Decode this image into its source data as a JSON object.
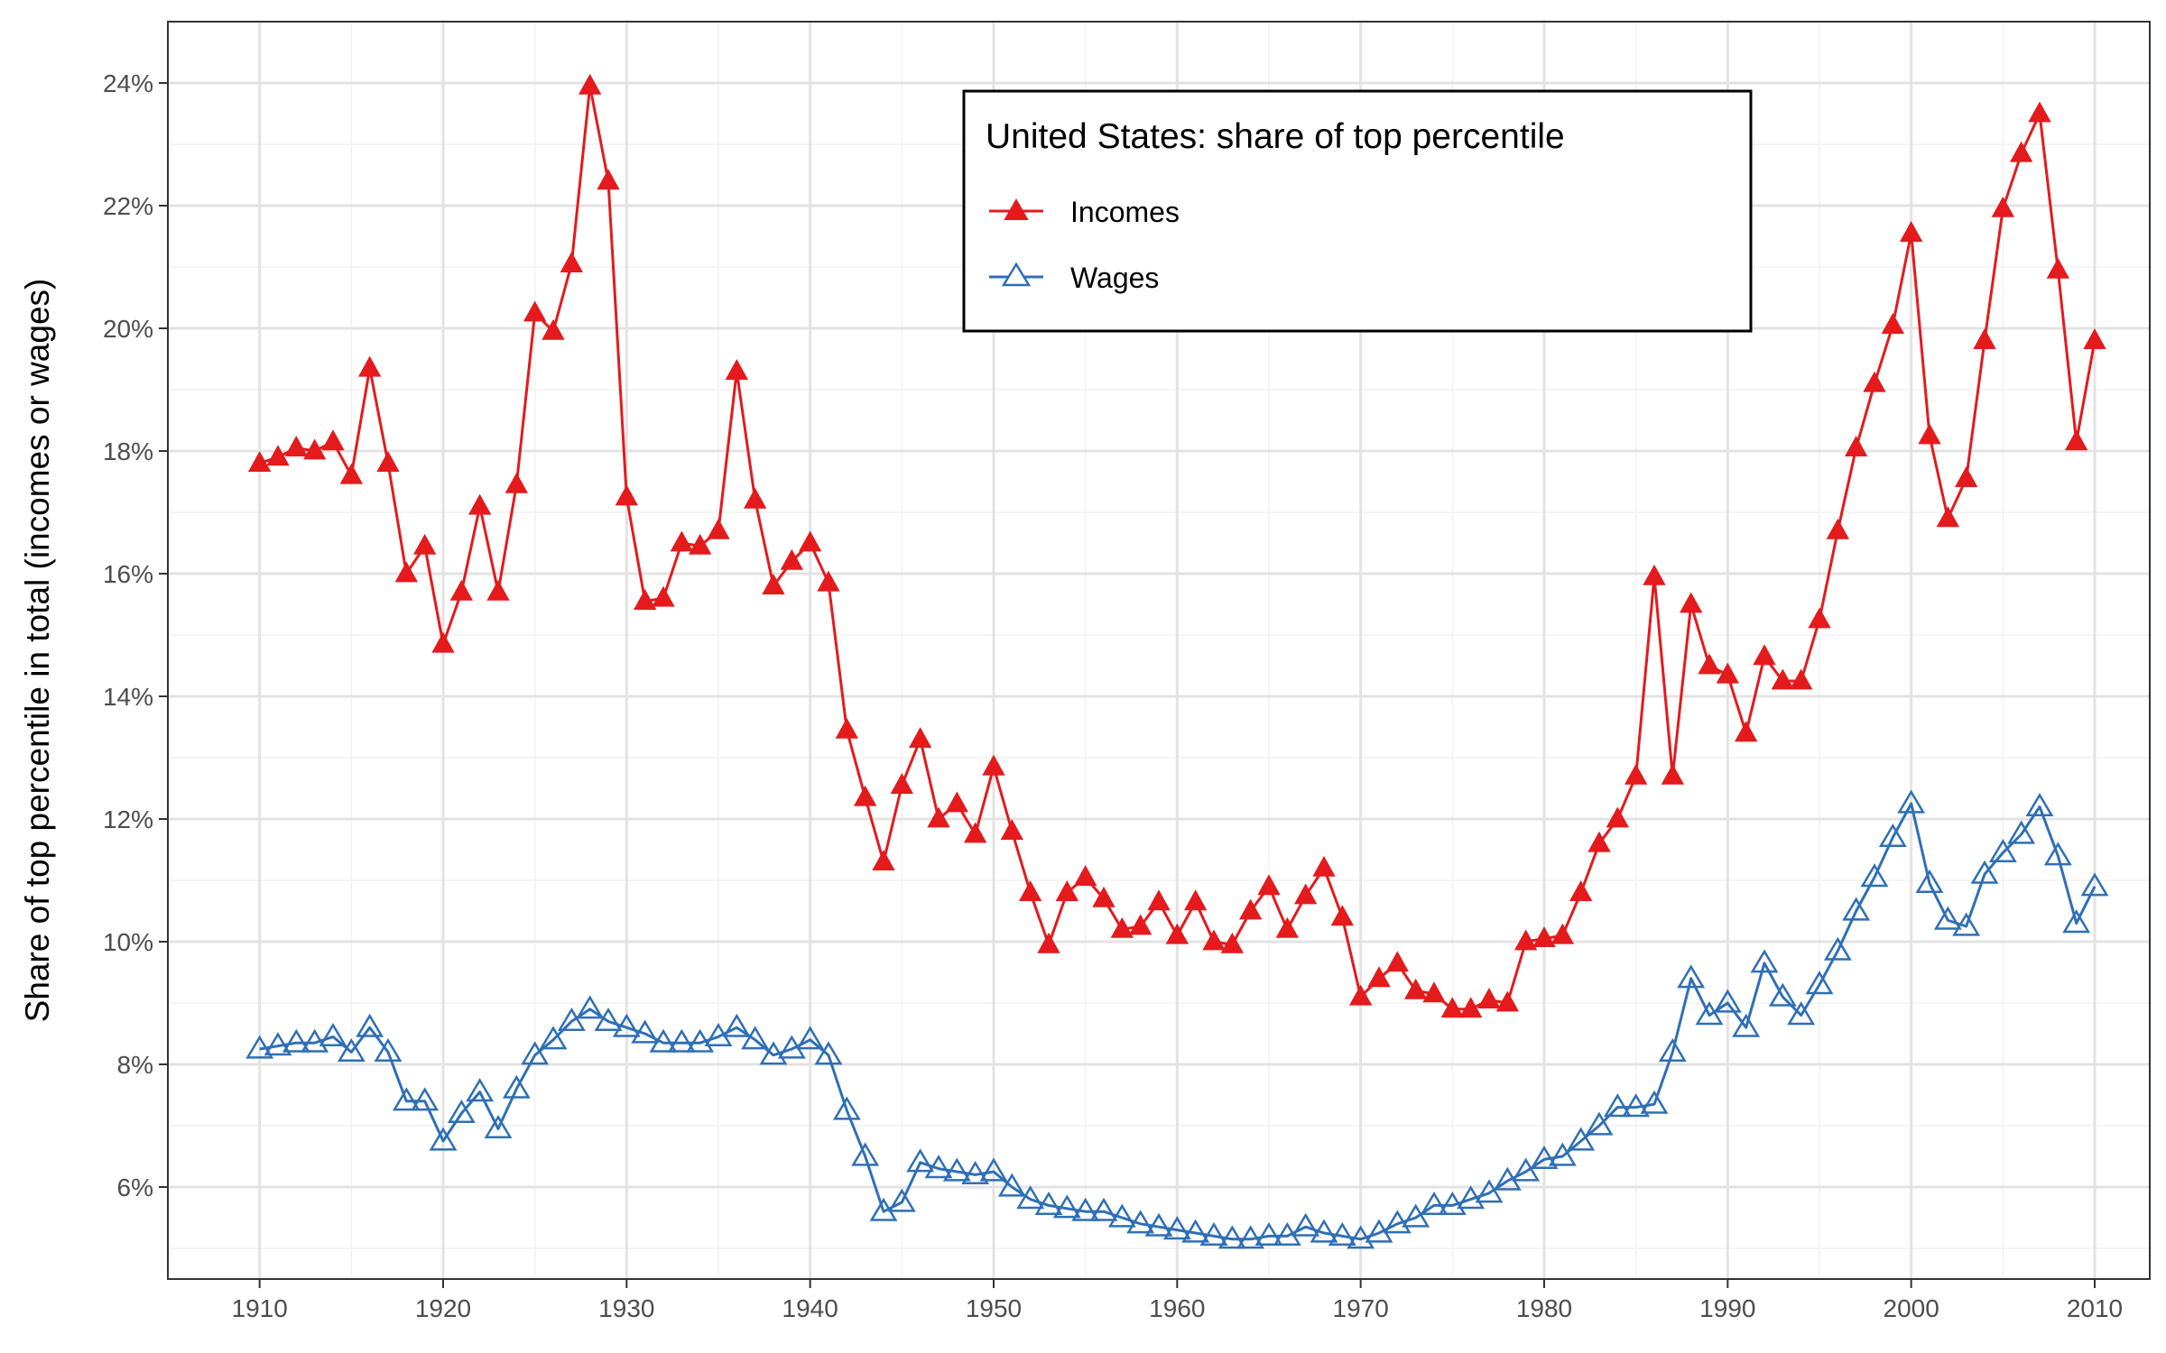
{
  "chart_data": {
    "type": "line",
    "title": "",
    "xlabel": "",
    "ylabel": "Share of top percentile in total (incomes or wages)",
    "legend_title": "United States: share of top percentile",
    "legend_position": "top-center (inside plot)",
    "grid": true,
    "xlim": [
      1905,
      2013
    ],
    "ylim": [
      4.5,
      25.0
    ],
    "x_ticks": [
      1910,
      1920,
      1930,
      1940,
      1950,
      1960,
      1970,
      1980,
      1990,
      2000,
      2010
    ],
    "x_tick_labels": [
      "1910",
      "1920",
      "1930",
      "1940",
      "1950",
      "1960",
      "1970",
      "1980",
      "1990",
      "2000",
      "2010"
    ],
    "y_ticks": [
      6,
      8,
      10,
      12,
      14,
      16,
      18,
      20,
      22,
      24
    ],
    "y_tick_labels": [
      "6%",
      "8%",
      "10%",
      "12%",
      "14%",
      "16%",
      "18%",
      "20%",
      "22%",
      "24%"
    ],
    "x": [
      1910,
      1911,
      1912,
      1913,
      1914,
      1915,
      1916,
      1917,
      1918,
      1919,
      1920,
      1921,
      1922,
      1923,
      1924,
      1925,
      1926,
      1927,
      1928,
      1929,
      1930,
      1931,
      1932,
      1933,
      1934,
      1935,
      1936,
      1937,
      1938,
      1939,
      1940,
      1941,
      1942,
      1943,
      1944,
      1945,
      1946,
      1947,
      1948,
      1949,
      1950,
      1951,
      1952,
      1953,
      1954,
      1955,
      1956,
      1957,
      1958,
      1959,
      1960,
      1961,
      1962,
      1963,
      1964,
      1965,
      1966,
      1967,
      1968,
      1969,
      1970,
      1971,
      1972,
      1973,
      1974,
      1975,
      1976,
      1977,
      1978,
      1979,
      1980,
      1981,
      1982,
      1983,
      1984,
      1985,
      1986,
      1987,
      1988,
      1989,
      1990,
      1991,
      1992,
      1993,
      1994,
      1995,
      1996,
      1997,
      1998,
      1999,
      2000,
      2001,
      2002,
      2003,
      2004,
      2005,
      2006,
      2007,
      2008,
      2009,
      2010
    ],
    "series": [
      {
        "name": "Incomes",
        "color": "#e41a1c",
        "marker": "filled-triangle",
        "values": [
          17.8,
          17.9,
          18.05,
          18.0,
          18.15,
          17.6,
          19.35,
          17.8,
          16.0,
          16.45,
          14.85,
          15.7,
          17.1,
          15.7,
          17.45,
          20.25,
          19.95,
          21.05,
          23.95,
          22.4,
          17.25,
          15.55,
          15.6,
          16.5,
          16.45,
          16.7,
          19.3,
          17.2,
          15.8,
          16.2,
          16.5,
          15.85,
          13.45,
          12.35,
          11.3,
          12.55,
          13.3,
          12.0,
          12.25,
          11.75,
          12.85,
          11.8,
          10.8,
          9.95,
          10.8,
          11.05,
          10.7,
          10.2,
          10.25,
          10.65,
          10.1,
          10.65,
          10.0,
          9.95,
          10.5,
          10.9,
          10.2,
          10.75,
          11.2,
          10.4,
          9.1,
          9.4,
          9.65,
          9.2,
          9.15,
          8.9,
          8.9,
          9.05,
          9.0,
          10.0,
          10.05,
          10.1,
          10.8,
          11.6,
          12.0,
          12.7,
          15.95,
          12.7,
          15.5,
          14.5,
          14.35,
          13.4,
          14.65,
          14.25,
          14.25,
          15.25,
          16.7,
          18.05,
          19.1,
          20.05,
          21.55,
          18.25,
          16.9,
          17.55,
          19.8,
          21.95,
          22.85,
          23.5,
          20.95,
          18.15,
          19.8
        ]
      },
      {
        "name": "Wages",
        "color": "#2f6fb6",
        "marker": "open-triangle",
        "values": [
          8.25,
          8.3,
          8.35,
          8.35,
          8.45,
          8.2,
          8.6,
          8.2,
          7.4,
          7.4,
          6.75,
          7.2,
          7.55,
          6.95,
          7.6,
          8.15,
          8.4,
          8.7,
          8.9,
          8.7,
          8.6,
          8.5,
          8.35,
          8.35,
          8.35,
          8.45,
          8.6,
          8.4,
          8.15,
          8.25,
          8.4,
          8.15,
          7.25,
          6.5,
          5.6,
          5.75,
          6.4,
          6.3,
          6.25,
          6.2,
          6.25,
          6.0,
          5.8,
          5.7,
          5.65,
          5.6,
          5.6,
          5.5,
          5.4,
          5.35,
          5.3,
          5.25,
          5.2,
          5.15,
          5.15,
          5.2,
          5.2,
          5.35,
          5.25,
          5.2,
          5.15,
          5.25,
          5.4,
          5.5,
          5.7,
          5.7,
          5.8,
          5.9,
          6.1,
          6.25,
          6.45,
          6.5,
          6.75,
          7.0,
          7.3,
          7.3,
          7.35,
          8.2,
          9.4,
          8.8,
          9.0,
          8.6,
          9.65,
          9.1,
          8.8,
          9.3,
          9.85,
          10.5,
          11.05,
          11.7,
          12.25,
          10.95,
          10.35,
          10.25,
          11.1,
          11.45,
          11.75,
          12.2,
          11.4,
          10.3,
          10.9
        ]
      }
    ]
  }
}
